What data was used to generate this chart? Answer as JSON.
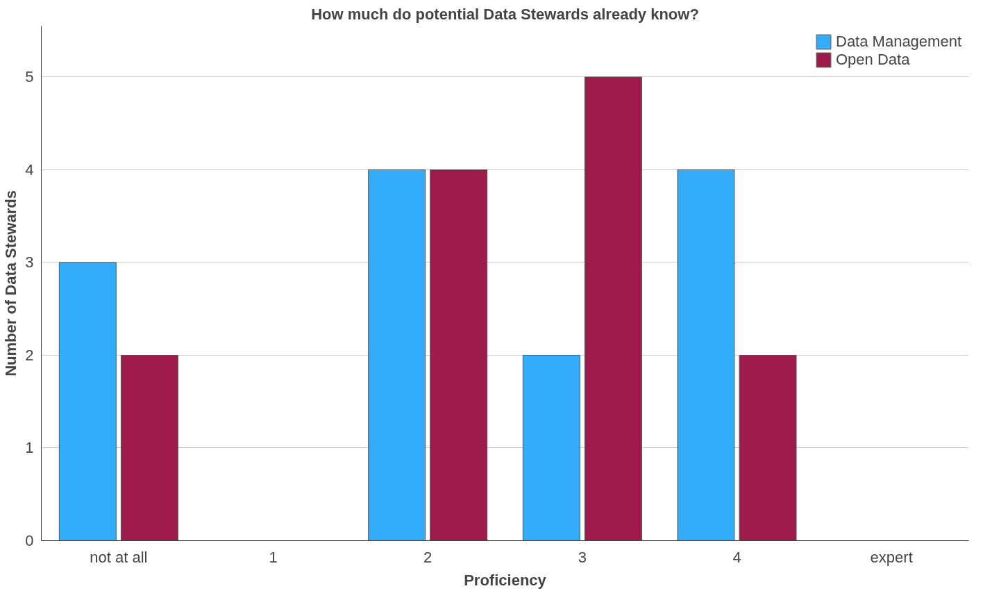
{
  "chart_data": {
    "type": "bar",
    "title": "How much do potential Data Stewards already know?",
    "xlabel": "Proficiency",
    "ylabel": "Number of Data Stewards",
    "categories": [
      "not at all",
      "1",
      "2",
      "3",
      "4",
      "expert"
    ],
    "series": [
      {
        "name": "Data Management",
        "color": "#33adfa",
        "values": [
          3,
          0,
          4,
          2,
          4,
          0
        ]
      },
      {
        "name": "Open Data",
        "color": "#9e1a4a",
        "values": [
          2,
          0,
          4,
          5,
          2,
          0
        ]
      }
    ],
    "ylim": [
      0,
      5.55
    ],
    "yticks": [
      0,
      1,
      2,
      3,
      4,
      5
    ],
    "grid": "y",
    "legend": "top right"
  }
}
